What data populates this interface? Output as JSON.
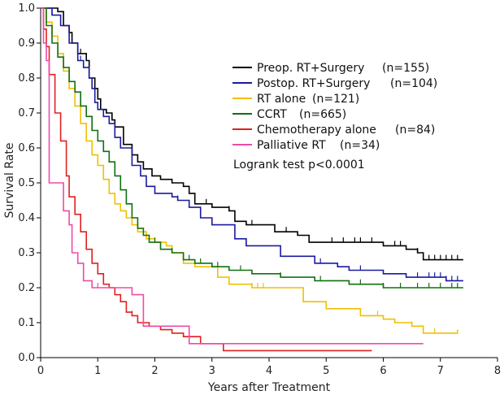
{
  "chart_data": {
    "type": "line",
    "subtype": "kaplan-meier",
    "xlabel": "Years after Treatment",
    "ylabel": "Survival Rate",
    "xlim": [
      0,
      8
    ],
    "ylim": [
      0,
      1.0
    ],
    "x_ticks": [
      "0",
      "1",
      "2",
      "3",
      "4",
      "5",
      "6",
      "7",
      "8"
    ],
    "y_ticks": [
      "0.0",
      "0.1",
      "0.2",
      "0.3",
      "0.4",
      "0.5",
      "0.6",
      "0.7",
      "0.8",
      "0.9",
      "1.0"
    ],
    "annotation": "Logrank test p<0.0001",
    "series": [
      {
        "name": "Preop. RT+Surgery",
        "n_label": "(n=155)",
        "color": "#000000",
        "steps": [
          [
            0,
            1.0
          ],
          [
            0.3,
            0.99
          ],
          [
            0.4,
            0.95
          ],
          [
            0.5,
            0.93
          ],
          [
            0.55,
            0.9
          ],
          [
            0.65,
            0.87
          ],
          [
            0.8,
            0.85
          ],
          [
            0.85,
            0.8
          ],
          [
            0.95,
            0.77
          ],
          [
            1.0,
            0.74
          ],
          [
            1.05,
            0.71
          ],
          [
            1.15,
            0.7
          ],
          [
            1.25,
            0.68
          ],
          [
            1.3,
            0.66
          ],
          [
            1.45,
            0.61
          ],
          [
            1.6,
            0.58
          ],
          [
            1.7,
            0.56
          ],
          [
            1.8,
            0.54
          ],
          [
            1.95,
            0.52
          ],
          [
            2.1,
            0.51
          ],
          [
            2.3,
            0.5
          ],
          [
            2.5,
            0.49
          ],
          [
            2.6,
            0.47
          ],
          [
            2.7,
            0.44
          ],
          [
            3.0,
            0.43
          ],
          [
            3.3,
            0.42
          ],
          [
            3.4,
            0.39
          ],
          [
            3.6,
            0.38
          ],
          [
            4.1,
            0.36
          ],
          [
            4.5,
            0.35
          ],
          [
            4.7,
            0.33
          ],
          [
            5.3,
            0.33
          ],
          [
            6.0,
            0.32
          ],
          [
            6.4,
            0.31
          ],
          [
            6.6,
            0.3
          ],
          [
            6.7,
            0.28
          ],
          [
            7.4,
            0.28
          ]
        ],
        "censors": [
          0.7,
          1.0,
          2.9,
          3.3,
          3.7,
          4.3,
          5.1,
          5.3,
          5.5,
          5.6,
          5.8,
          6.2,
          6.3,
          6.6,
          6.8,
          6.9,
          7.0,
          7.1,
          7.2,
          7.3
        ]
      },
      {
        "name": "Postop. RT+Surgery",
        "n_label": "(n=104)",
        "color": "#1a1aa0",
        "steps": [
          [
            0,
            1.0
          ],
          [
            0.2,
            0.98
          ],
          [
            0.35,
            0.95
          ],
          [
            0.5,
            0.9
          ],
          [
            0.65,
            0.85
          ],
          [
            0.75,
            0.83
          ],
          [
            0.85,
            0.8
          ],
          [
            0.9,
            0.77
          ],
          [
            0.95,
            0.73
          ],
          [
            1.0,
            0.71
          ],
          [
            1.1,
            0.69
          ],
          [
            1.2,
            0.67
          ],
          [
            1.3,
            0.63
          ],
          [
            1.4,
            0.6
          ],
          [
            1.6,
            0.55
          ],
          [
            1.75,
            0.52
          ],
          [
            1.85,
            0.49
          ],
          [
            2.0,
            0.47
          ],
          [
            2.3,
            0.46
          ],
          [
            2.4,
            0.45
          ],
          [
            2.6,
            0.43
          ],
          [
            2.8,
            0.4
          ],
          [
            3.0,
            0.38
          ],
          [
            3.4,
            0.34
          ],
          [
            3.6,
            0.32
          ],
          [
            4.2,
            0.29
          ],
          [
            4.8,
            0.27
          ],
          [
            5.2,
            0.26
          ],
          [
            5.4,
            0.25
          ],
          [
            6.0,
            0.24
          ],
          [
            6.4,
            0.23
          ],
          [
            7.1,
            0.22
          ],
          [
            7.4,
            0.22
          ]
        ],
        "censors": [
          0.2,
          0.7,
          2.4,
          3.6,
          4.9,
          5.6,
          6.6,
          6.8,
          6.9,
          7.0,
          7.1,
          7.2,
          7.3
        ]
      },
      {
        "name": "RT alone",
        "n_label": "(n=121)",
        "color": "#f0c000",
        "steps": [
          [
            0,
            1.0
          ],
          [
            0.1,
            0.96
          ],
          [
            0.2,
            0.92
          ],
          [
            0.3,
            0.87
          ],
          [
            0.4,
            0.82
          ],
          [
            0.5,
            0.77
          ],
          [
            0.6,
            0.72
          ],
          [
            0.7,
            0.67
          ],
          [
            0.8,
            0.62
          ],
          [
            0.9,
            0.58
          ],
          [
            1.0,
            0.55
          ],
          [
            1.1,
            0.51
          ],
          [
            1.2,
            0.47
          ],
          [
            1.3,
            0.44
          ],
          [
            1.4,
            0.42
          ],
          [
            1.5,
            0.4
          ],
          [
            1.6,
            0.38
          ],
          [
            1.7,
            0.36
          ],
          [
            1.85,
            0.34
          ],
          [
            2.0,
            0.33
          ],
          [
            2.2,
            0.32
          ],
          [
            2.3,
            0.3
          ],
          [
            2.5,
            0.27
          ],
          [
            2.7,
            0.26
          ],
          [
            3.1,
            0.23
          ],
          [
            3.3,
            0.21
          ],
          [
            3.7,
            0.2
          ],
          [
            4.5,
            0.2
          ],
          [
            4.6,
            0.16
          ],
          [
            5.0,
            0.14
          ],
          [
            5.6,
            0.12
          ],
          [
            6.0,
            0.11
          ],
          [
            6.2,
            0.1
          ],
          [
            6.5,
            0.09
          ],
          [
            6.7,
            0.07
          ],
          [
            7.3,
            0.08
          ]
        ],
        "censors": [
          0.7,
          3.1,
          3.7,
          3.8,
          3.9,
          4.6,
          5.9,
          6.5,
          6.9
        ]
      },
      {
        "name": "CCRT",
        "n_label": "(n=665)",
        "color": "#107010",
        "steps": [
          [
            0,
            1.0
          ],
          [
            0.1,
            0.95
          ],
          [
            0.2,
            0.9
          ],
          [
            0.3,
            0.86
          ],
          [
            0.4,
            0.83
          ],
          [
            0.5,
            0.79
          ],
          [
            0.6,
            0.76
          ],
          [
            0.7,
            0.72
          ],
          [
            0.8,
            0.69
          ],
          [
            0.9,
            0.65
          ],
          [
            1.0,
            0.62
          ],
          [
            1.1,
            0.59
          ],
          [
            1.2,
            0.56
          ],
          [
            1.3,
            0.52
          ],
          [
            1.4,
            0.48
          ],
          [
            1.5,
            0.44
          ],
          [
            1.6,
            0.4
          ],
          [
            1.7,
            0.37
          ],
          [
            1.8,
            0.35
          ],
          [
            1.9,
            0.33
          ],
          [
            2.1,
            0.31
          ],
          [
            2.3,
            0.3
          ],
          [
            2.5,
            0.28
          ],
          [
            2.7,
            0.27
          ],
          [
            3.0,
            0.26
          ],
          [
            3.3,
            0.25
          ],
          [
            3.7,
            0.24
          ],
          [
            4.2,
            0.23
          ],
          [
            4.8,
            0.22
          ],
          [
            5.4,
            0.21
          ],
          [
            6.0,
            0.2
          ],
          [
            7.4,
            0.2
          ]
        ],
        "censors": [
          0.4,
          1.0,
          1.5,
          2.0,
          2.3,
          2.6,
          2.8,
          3.1,
          3.5,
          4.2,
          4.9,
          5.6,
          6.0,
          6.3,
          6.6,
          6.8,
          7.0,
          7.2,
          7.3
        ]
      },
      {
        "name": "Chemotherapy alone",
        "n_label": "(n=84)",
        "color": "#e02020",
        "steps": [
          [
            0,
            1.0
          ],
          [
            0.05,
            0.94
          ],
          [
            0.1,
            0.89
          ],
          [
            0.15,
            0.81
          ],
          [
            0.25,
            0.7
          ],
          [
            0.35,
            0.62
          ],
          [
            0.45,
            0.52
          ],
          [
            0.5,
            0.46
          ],
          [
            0.6,
            0.41
          ],
          [
            0.7,
            0.36
          ],
          [
            0.8,
            0.31
          ],
          [
            0.9,
            0.27
          ],
          [
            1.0,
            0.24
          ],
          [
            1.1,
            0.21
          ],
          [
            1.2,
            0.2
          ],
          [
            1.3,
            0.18
          ],
          [
            1.4,
            0.16
          ],
          [
            1.5,
            0.13
          ],
          [
            1.6,
            0.12
          ],
          [
            1.7,
            0.1
          ],
          [
            1.9,
            0.09
          ],
          [
            2.1,
            0.08
          ],
          [
            2.3,
            0.07
          ],
          [
            2.5,
            0.06
          ],
          [
            2.8,
            0.04
          ],
          [
            3.2,
            0.02
          ],
          [
            5.8,
            0.02
          ]
        ],
        "censors": [
          0.6,
          1.3,
          1.6
        ]
      },
      {
        "name": "Palliative RT",
        "n_label": "(n=34)",
        "color": "#f04aa8",
        "steps": [
          [
            0,
            1.0
          ],
          [
            0.05,
            0.9
          ],
          [
            0.1,
            0.85
          ],
          [
            0.15,
            0.5
          ],
          [
            0.4,
            0.42
          ],
          [
            0.5,
            0.38
          ],
          [
            0.55,
            0.3
          ],
          [
            0.65,
            0.27
          ],
          [
            0.75,
            0.22
          ],
          [
            0.9,
            0.2
          ],
          [
            1.6,
            0.18
          ],
          [
            1.8,
            0.09
          ],
          [
            2.6,
            0.06
          ],
          [
            2.6,
            0.04
          ],
          [
            6.7,
            0.04
          ]
        ],
        "censors": [
          1.0,
          1.8,
          2.6
        ]
      }
    ]
  }
}
